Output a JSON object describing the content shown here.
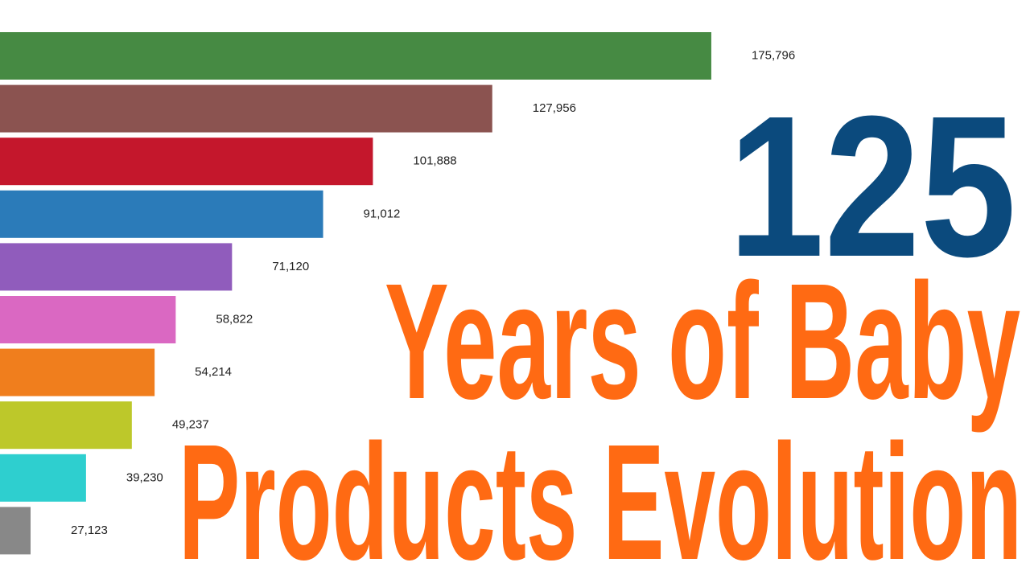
{
  "chart_data": {
    "type": "hbar",
    "headline": "125",
    "title_lines": [
      "Years of Baby",
      "Products Evolution"
    ],
    "categories": [
      null,
      null,
      null,
      null,
      null,
      null,
      null,
      null,
      null,
      null
    ],
    "values": [
      175796,
      127956,
      101888,
      91012,
      71120,
      58822,
      54214,
      49237,
      39230,
      27123
    ],
    "value_labels": [
      "175,796",
      "127,956",
      "101,888",
      "91,012",
      "71,120",
      "58,822",
      "54,214",
      "49,237",
      "39,230",
      "27,123"
    ],
    "colors": [
      "#468a43",
      "#8b5350",
      "#c4172c",
      "#2b7bb9",
      "#905cbc",
      "#da68c2",
      "#f07e1d",
      "#bdc82a",
      "#2ecfcf",
      "#888888"
    ],
    "xlim": [
      20445,
      245400
    ]
  }
}
